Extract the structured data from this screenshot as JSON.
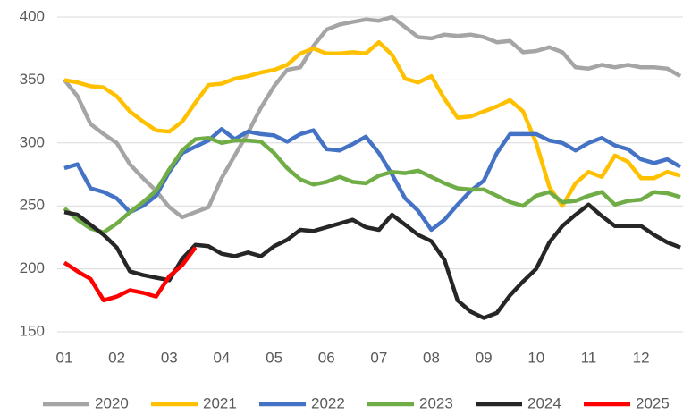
{
  "chart_data": {
    "type": "line",
    "x": [
      1,
      1.25,
      1.5,
      1.75,
      2,
      2.25,
      2.5,
      2.75,
      3,
      3.25,
      3.5,
      3.75,
      4,
      4.25,
      4.5,
      4.75,
      5,
      5.25,
      5.5,
      5.75,
      6,
      6.25,
      6.5,
      6.75,
      7,
      7.25,
      7.5,
      7.75,
      8,
      8.25,
      8.5,
      8.75,
      9,
      9.25,
      9.5,
      9.75,
      10,
      10.25,
      10.5,
      10.75,
      11,
      11.25,
      11.5,
      11.75,
      12,
      12.25,
      12.5,
      12.75
    ],
    "series": [
      {
        "name": "2020",
        "color": "#a5a5a5",
        "values": [
          350,
          337,
          315,
          307,
          300,
          283,
          272,
          262,
          249,
          241,
          245,
          249,
          272,
          290,
          308,
          328,
          345,
          358,
          360,
          377,
          390,
          394,
          396,
          398,
          397,
          400,
          392,
          384,
          383,
          386,
          385,
          386,
          384,
          380,
          381,
          372,
          373,
          376,
          372,
          360,
          359,
          362,
          360,
          362,
          360,
          360,
          359,
          353
        ]
      },
      {
        "name": "2021",
        "color": "#ffc000",
        "values": [
          350,
          348,
          345,
          344,
          337,
          325,
          317,
          310,
          309,
          317,
          332,
          346,
          347,
          351,
          353,
          356,
          358,
          362,
          371,
          375,
          371,
          371,
          372,
          371,
          380,
          370,
          351,
          348,
          353,
          335,
          320,
          321,
          325,
          329,
          334,
          325,
          300,
          265,
          250,
          268,
          277,
          273,
          290,
          285,
          272,
          272,
          277,
          274
        ]
      },
      {
        "name": "2022",
        "color": "#4472c4",
        "values": [
          280,
          283,
          264,
          261,
          256,
          245,
          250,
          258,
          277,
          292,
          297,
          302,
          311,
          303,
          309,
          307,
          306,
          301,
          307,
          310,
          295,
          294,
          299,
          305,
          292,
          275,
          256,
          246,
          231,
          239,
          251,
          262,
          270,
          292,
          307,
          307,
          307,
          302,
          300,
          294,
          300,
          304,
          298,
          295,
          287,
          284,
          287,
          281
        ]
      },
      {
        "name": "2023",
        "color": "#70ad47",
        "values": [
          248,
          239,
          232,
          229,
          236,
          245,
          253,
          262,
          279,
          294,
          303,
          304,
          300,
          302,
          302,
          301,
          292,
          280,
          271,
          267,
          269,
          273,
          269,
          268,
          274,
          277,
          276,
          278,
          273,
          268,
          264,
          263,
          263,
          258,
          253,
          250,
          258,
          261,
          253,
          254,
          258,
          261,
          251,
          254,
          255,
          261,
          260,
          257
        ]
      },
      {
        "name": "2024",
        "color": "#262626",
        "values": [
          245,
          243,
          235,
          227,
          217,
          198,
          195,
          193,
          191,
          208,
          219,
          218,
          212,
          210,
          213,
          210,
          218,
          223,
          231,
          230,
          233,
          236,
          239,
          233,
          231,
          243,
          235,
          227,
          222,
          207,
          175,
          166,
          161,
          165,
          179,
          190,
          200,
          221,
          234,
          243,
          251,
          242,
          234,
          234,
          234,
          227,
          221,
          217
        ]
      },
      {
        "name": "2025",
        "color": "#ff0000",
        "values": [
          205,
          198,
          192,
          175,
          178,
          183,
          181,
          178,
          194,
          203,
          217,
          null,
          null,
          null,
          null,
          null,
          null,
          null,
          null,
          null,
          null,
          null,
          null,
          null,
          null,
          null,
          null,
          null,
          null,
          null,
          null,
          null,
          null,
          null,
          null,
          null,
          null,
          null,
          null,
          null,
          null,
          null,
          null,
          null,
          null,
          null,
          null,
          null
        ]
      }
    ],
    "xlim": [
      1,
      12.8
    ],
    "xticks": [
      {
        "value": 1,
        "label": "01"
      },
      {
        "value": 2,
        "label": "02"
      },
      {
        "value": 3,
        "label": "03"
      },
      {
        "value": 4,
        "label": "04"
      },
      {
        "value": 5,
        "label": "05"
      },
      {
        "value": 6,
        "label": "06"
      },
      {
        "value": 7,
        "label": "07"
      },
      {
        "value": 8,
        "label": "08"
      },
      {
        "value": 9,
        "label": "09"
      },
      {
        "value": 10,
        "label": "10"
      },
      {
        "value": 11,
        "label": "11"
      },
      {
        "value": 12,
        "label": "12"
      }
    ],
    "ylim": [
      150,
      400
    ],
    "yticks": [
      150,
      200,
      250,
      300,
      350,
      400
    ],
    "grid": true,
    "legend": "bottom"
  }
}
